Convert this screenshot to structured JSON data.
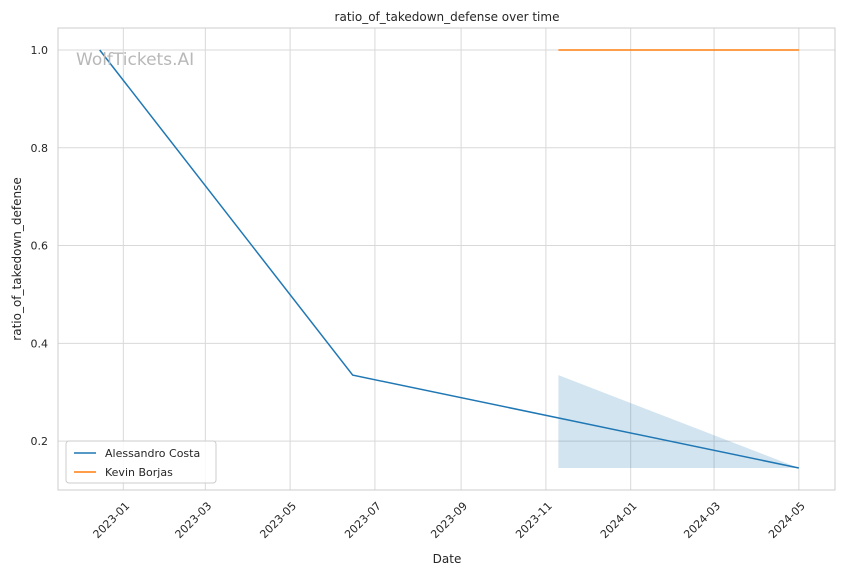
{
  "chart_data": {
    "type": "line",
    "title": "ratio_of_takedown_defense over time",
    "xlabel": "Date",
    "ylabel": "ratio_of_takedown_defense",
    "watermark": "WolfTickets.AI",
    "x_ticks": [
      "2023-01",
      "2023-03",
      "2023-05",
      "2023-07",
      "2023-09",
      "2023-11",
      "2024-01",
      "2024-03",
      "2024-05"
    ],
    "y_ticks": [
      "0.2",
      "0.4",
      "0.6",
      "0.8",
      "1.0"
    ],
    "xlim": [
      "2022-11-15",
      "2024-05-27"
    ],
    "ylim": [
      0.1,
      1.045
    ],
    "grid": true,
    "legend": {
      "position": "lower-left"
    },
    "series": [
      {
        "name": "Alessandro Costa",
        "color": "#1f77b4",
        "x": [
          "2022-12-15",
          "2023-06-15",
          "2024-05-01"
        ],
        "y": [
          1.0,
          0.335,
          0.145
        ],
        "band": {
          "x": [
            "2023-11-10",
            "2024-05-01"
          ],
          "upper": [
            0.335,
            0.145
          ],
          "lower": [
            0.145,
            0.145
          ]
        }
      },
      {
        "name": "Kevin Borjas",
        "color": "#ff7f0e",
        "x": [
          "2023-11-10",
          "2024-05-01"
        ],
        "y": [
          1.0,
          1.0
        ]
      }
    ]
  }
}
